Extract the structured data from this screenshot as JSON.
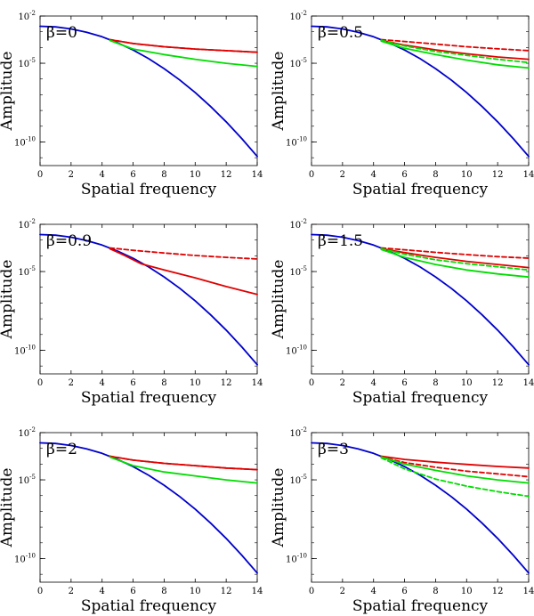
{
  "colors": {
    "blue": "#0000cc",
    "red": "#e00000",
    "green": "#00dd00",
    "axis": "#000000"
  },
  "chart_data": [
    {
      "type": "line",
      "panel_label": "β=0",
      "xlabel": "Spatial frequency",
      "ylabel": "Amplitude",
      "yscale": "log",
      "xlim": [
        0,
        14
      ],
      "ylim_log10": [
        -11.5,
        -2
      ],
      "xticks": [
        "0",
        "2",
        "4",
        "6",
        "8",
        "10",
        "12",
        "14"
      ],
      "yticks": [
        {
          "base": "10",
          "exp": "-2",
          "value": -2
        },
        {
          "base": "10",
          "exp": "-5",
          "value": -5
        },
        {
          "base": "10",
          "exp": "-10",
          "value": -10
        }
      ],
      "series": [
        {
          "name": "blue-solid",
          "color": "blue",
          "dash": false,
          "x": [
            0,
            1,
            2,
            3,
            4,
            5,
            6,
            7,
            8,
            9,
            10,
            11,
            12,
            13,
            14
          ],
          "log10_y": [
            -2.65,
            -2.69,
            -2.82,
            -3.03,
            -3.32,
            -3.7,
            -4.16,
            -4.71,
            -5.34,
            -6.06,
            -6.86,
            -7.75,
            -8.72,
            -9.78,
            -10.92
          ]
        },
        {
          "name": "red-solid",
          "color": "red",
          "dash": false,
          "x": [
            4.5,
            6,
            8,
            10,
            12,
            14
          ],
          "log10_y": [
            -3.5,
            -3.75,
            -3.95,
            -4.1,
            -4.2,
            -4.3
          ]
        },
        {
          "name": "red-dashed",
          "color": "red",
          "dash": true,
          "x": [
            4.5,
            6,
            8,
            10,
            12,
            14
          ],
          "log10_y": [
            -3.5,
            -3.75,
            -3.95,
            -4.1,
            -4.2,
            -4.3
          ]
        },
        {
          "name": "green-solid",
          "color": "green",
          "dash": false,
          "x": [
            4.5,
            6,
            8,
            10,
            12,
            14
          ],
          "log10_y": [
            -3.55,
            -4.1,
            -4.45,
            -4.75,
            -5.0,
            -5.2
          ]
        }
      ]
    },
    {
      "type": "line",
      "panel_label": "β=0.5",
      "xlabel": "Spatial frequency",
      "ylabel": "Amplitude",
      "yscale": "log",
      "xlim": [
        0,
        14
      ],
      "ylim_log10": [
        -11.5,
        -2
      ],
      "xticks": [
        "0",
        "2",
        "4",
        "6",
        "8",
        "10",
        "12",
        "14"
      ],
      "yticks": [
        {
          "base": "10",
          "exp": "-2",
          "value": -2
        },
        {
          "base": "10",
          "exp": "-5",
          "value": -5
        },
        {
          "base": "10",
          "exp": "-10",
          "value": -10
        }
      ],
      "series": [
        {
          "name": "blue-solid",
          "color": "blue",
          "dash": false,
          "x": [
            0,
            1,
            2,
            3,
            4,
            5,
            6,
            7,
            8,
            9,
            10,
            11,
            12,
            13,
            14
          ],
          "log10_y": [
            -2.65,
            -2.69,
            -2.82,
            -3.03,
            -3.32,
            -3.7,
            -4.16,
            -4.71,
            -5.34,
            -6.06,
            -6.86,
            -7.75,
            -8.72,
            -9.78,
            -10.92
          ]
        },
        {
          "name": "red-dashed",
          "color": "red",
          "dash": true,
          "x": [
            4.5,
            6,
            8,
            10,
            12,
            14
          ],
          "log10_y": [
            -3.5,
            -3.62,
            -3.78,
            -3.95,
            -4.08,
            -4.2
          ]
        },
        {
          "name": "red-solid",
          "color": "red",
          "dash": false,
          "x": [
            4.5,
            6,
            8,
            10,
            12,
            14
          ],
          "log10_y": [
            -3.55,
            -3.85,
            -4.15,
            -4.4,
            -4.6,
            -4.75
          ]
        },
        {
          "name": "green-dashed",
          "color": "green",
          "dash": true,
          "x": [
            4.5,
            6,
            8,
            10,
            12,
            14
          ],
          "log10_y": [
            -3.55,
            -3.9,
            -4.25,
            -4.5,
            -4.75,
            -4.95
          ]
        },
        {
          "name": "green-solid",
          "color": "green",
          "dash": false,
          "x": [
            4.5,
            6,
            8,
            10,
            12,
            14
          ],
          "log10_y": [
            -3.6,
            -4.05,
            -4.45,
            -4.8,
            -5.1,
            -5.3
          ]
        }
      ]
    },
    {
      "type": "line",
      "panel_label": "β=0.9",
      "xlabel": "Spatial frequency",
      "ylabel": "Amplitude",
      "yscale": "log",
      "xlim": [
        0,
        14
      ],
      "ylim_log10": [
        -11.5,
        -2
      ],
      "xticks": [
        "0",
        "2",
        "4",
        "6",
        "8",
        "10",
        "12",
        "14"
      ],
      "yticks": [
        {
          "base": "10",
          "exp": "-2",
          "value": -2
        },
        {
          "base": "10",
          "exp": "-5",
          "value": -5
        },
        {
          "base": "10",
          "exp": "-10",
          "value": -10
        }
      ],
      "series": [
        {
          "name": "blue-solid",
          "color": "blue",
          "dash": false,
          "x": [
            0,
            1,
            2,
            3,
            4,
            5,
            6,
            7,
            8,
            9,
            10,
            11,
            12,
            13,
            14
          ],
          "log10_y": [
            -2.65,
            -2.69,
            -2.82,
            -3.03,
            -3.32,
            -3.7,
            -4.16,
            -4.71,
            -5.34,
            -6.06,
            -6.86,
            -7.75,
            -8.72,
            -9.78,
            -10.92
          ]
        },
        {
          "name": "red-dashed",
          "color": "red",
          "dash": true,
          "x": [
            4.5,
            6,
            8,
            10,
            12,
            14
          ],
          "log10_y": [
            -3.5,
            -3.65,
            -3.82,
            -3.98,
            -4.1,
            -4.2
          ]
        },
        {
          "name": "red-solid",
          "color": "red",
          "dash": false,
          "x": [
            4.5,
            5.5,
            6.5,
            8,
            10,
            12,
            14
          ],
          "log10_y": [
            -3.55,
            -4.0,
            -4.5,
            -4.9,
            -5.4,
            -5.95,
            -6.45
          ]
        }
      ]
    },
    {
      "type": "line",
      "panel_label": "β=1.5",
      "xlabel": "Spatial frequency",
      "ylabel": "Amplitude",
      "yscale": "log",
      "xlim": [
        0,
        14
      ],
      "ylim_log10": [
        -11.5,
        -2
      ],
      "xticks": [
        "0",
        "2",
        "4",
        "6",
        "8",
        "10",
        "12",
        "14"
      ],
      "yticks": [
        {
          "base": "10",
          "exp": "-2",
          "value": -2
        },
        {
          "base": "10",
          "exp": "-5",
          "value": -5
        },
        {
          "base": "10",
          "exp": "-10",
          "value": -10
        }
      ],
      "series": [
        {
          "name": "blue-solid",
          "color": "blue",
          "dash": false,
          "x": [
            0,
            1,
            2,
            3,
            4,
            5,
            6,
            7,
            8,
            9,
            10,
            11,
            12,
            13,
            14
          ],
          "log10_y": [
            -2.65,
            -2.69,
            -2.82,
            -3.03,
            -3.32,
            -3.7,
            -4.16,
            -4.71,
            -5.34,
            -6.06,
            -6.86,
            -7.75,
            -8.72,
            -9.78,
            -10.92
          ]
        },
        {
          "name": "red-dashed",
          "color": "red",
          "dash": true,
          "x": [
            4.5,
            6,
            8,
            10,
            12,
            14
          ],
          "log10_y": [
            -3.5,
            -3.62,
            -3.78,
            -3.92,
            -4.05,
            -4.15
          ]
        },
        {
          "name": "red-solid",
          "color": "red",
          "dash": false,
          "x": [
            4.5,
            6,
            8,
            10,
            12,
            14
          ],
          "log10_y": [
            -3.55,
            -3.8,
            -4.1,
            -4.35,
            -4.55,
            -4.75
          ]
        },
        {
          "name": "green-dashed",
          "color": "green",
          "dash": true,
          "x": [
            4.5,
            6,
            8,
            10,
            12,
            14
          ],
          "log10_y": [
            -3.55,
            -3.9,
            -4.25,
            -4.5,
            -4.7,
            -4.9
          ]
        },
        {
          "name": "green-solid",
          "color": "green",
          "dash": false,
          "x": [
            4.5,
            6,
            8,
            10,
            12,
            14
          ],
          "log10_y": [
            -3.6,
            -4.1,
            -4.55,
            -4.9,
            -5.15,
            -5.35
          ]
        }
      ]
    },
    {
      "type": "line",
      "panel_label": "β=2",
      "xlabel": "Spatial frequency",
      "ylabel": "Amplitude",
      "yscale": "log",
      "xlim": [
        0,
        14
      ],
      "ylim_log10": [
        -11.5,
        -2
      ],
      "xticks": [
        "0",
        "2",
        "4",
        "6",
        "8",
        "10",
        "12",
        "14"
      ],
      "yticks": [
        {
          "base": "10",
          "exp": "-2",
          "value": -2
        },
        {
          "base": "10",
          "exp": "-5",
          "value": -5
        },
        {
          "base": "10",
          "exp": "-10",
          "value": -10
        }
      ],
      "series": [
        {
          "name": "blue-solid",
          "color": "blue",
          "dash": false,
          "x": [
            0,
            1,
            2,
            3,
            4,
            5,
            6,
            7,
            8,
            9,
            10,
            11,
            12,
            13,
            14
          ],
          "log10_y": [
            -2.65,
            -2.69,
            -2.82,
            -3.03,
            -3.32,
            -3.7,
            -4.16,
            -4.71,
            -5.34,
            -6.06,
            -6.86,
            -7.75,
            -8.72,
            -9.78,
            -10.92
          ]
        },
        {
          "name": "red-solid",
          "color": "red",
          "dash": false,
          "x": [
            4.5,
            6,
            8,
            10,
            12,
            14
          ],
          "log10_y": [
            -3.5,
            -3.75,
            -3.95,
            -4.1,
            -4.25,
            -4.35
          ]
        },
        {
          "name": "red-dashed",
          "color": "red",
          "dash": true,
          "x": [
            4.5,
            6,
            8,
            10,
            12,
            14
          ],
          "log10_y": [
            -3.5,
            -3.75,
            -3.95,
            -4.1,
            -4.25,
            -4.35
          ]
        },
        {
          "name": "green-solid",
          "color": "green",
          "dash": false,
          "x": [
            4.5,
            6,
            8,
            10,
            12,
            14
          ],
          "log10_y": [
            -3.55,
            -4.1,
            -4.5,
            -4.75,
            -5.0,
            -5.2
          ]
        }
      ]
    },
    {
      "type": "line",
      "panel_label": "β=3",
      "xlabel": "Spatial frequency",
      "ylabel": "Amplitude",
      "yscale": "log",
      "xlim": [
        0,
        14
      ],
      "ylim_log10": [
        -11.5,
        -2
      ],
      "xticks": [
        "0",
        "2",
        "4",
        "6",
        "8",
        "10",
        "12",
        "14"
      ],
      "yticks": [
        {
          "base": "10",
          "exp": "-2",
          "value": -2
        },
        {
          "base": "10",
          "exp": "-5",
          "value": -5
        },
        {
          "base": "10",
          "exp": "-10",
          "value": -10
        }
      ],
      "series": [
        {
          "name": "blue-solid",
          "color": "blue",
          "dash": false,
          "x": [
            0,
            1,
            2,
            3,
            4,
            5,
            6,
            7,
            8,
            9,
            10,
            11,
            12,
            13,
            14
          ],
          "log10_y": [
            -2.65,
            -2.69,
            -2.82,
            -3.03,
            -3.32,
            -3.7,
            -4.16,
            -4.71,
            -5.34,
            -6.06,
            -6.86,
            -7.75,
            -8.72,
            -9.78,
            -10.92
          ]
        },
        {
          "name": "red-solid",
          "color": "red",
          "dash": false,
          "x": [
            4.5,
            6,
            8,
            10,
            12,
            14
          ],
          "log10_y": [
            -3.5,
            -3.7,
            -3.88,
            -4.02,
            -4.15,
            -4.25
          ]
        },
        {
          "name": "red-dashed",
          "color": "red",
          "dash": true,
          "x": [
            4.5,
            6,
            8,
            10,
            12,
            14
          ],
          "log10_y": [
            -3.55,
            -3.9,
            -4.2,
            -4.45,
            -4.62,
            -4.8
          ]
        },
        {
          "name": "green-solid",
          "color": "green",
          "dash": false,
          "x": [
            4.5,
            6,
            8,
            10,
            12,
            14
          ],
          "log10_y": [
            -3.55,
            -4.0,
            -4.4,
            -4.75,
            -5.0,
            -5.2
          ]
        },
        {
          "name": "green-dashed",
          "color": "green",
          "dash": true,
          "x": [
            4.5,
            6,
            8,
            10,
            12,
            14
          ],
          "log10_y": [
            -3.6,
            -4.3,
            -4.95,
            -5.4,
            -5.75,
            -6.05
          ]
        }
      ]
    }
  ]
}
